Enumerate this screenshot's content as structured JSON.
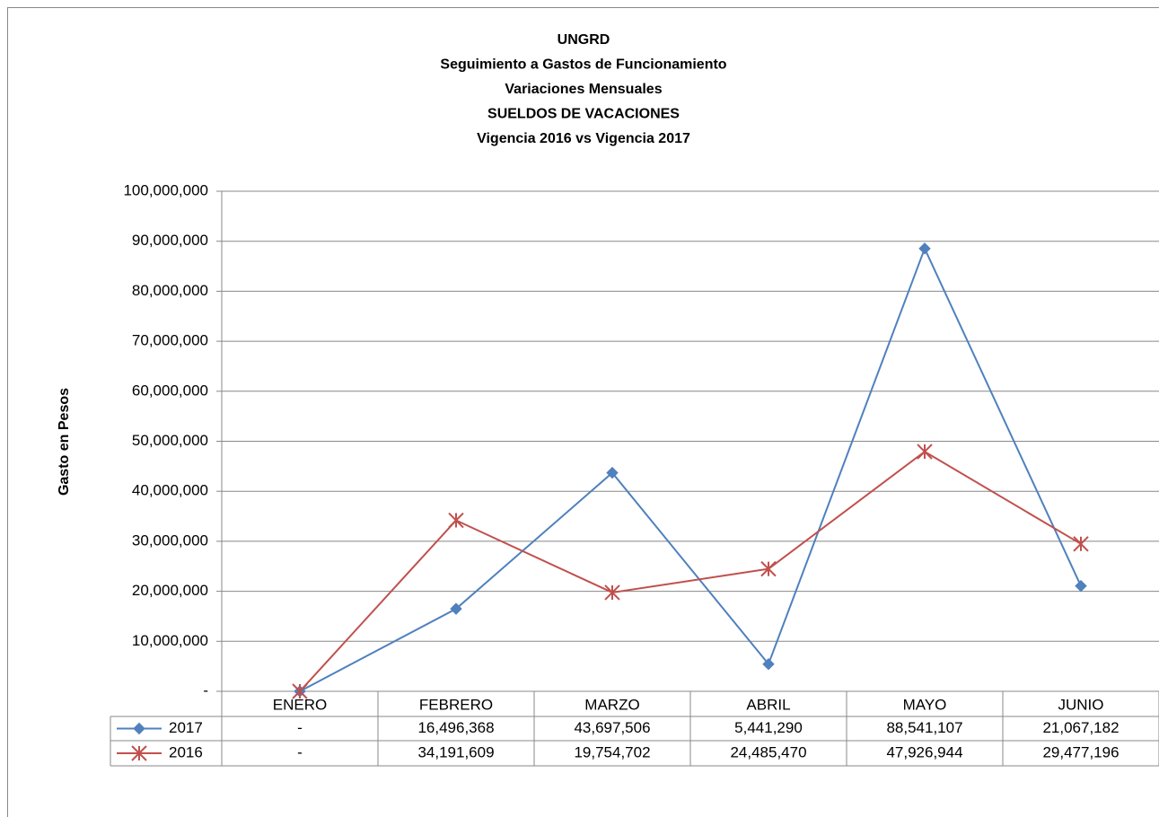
{
  "chart_data": {
    "type": "line",
    "title": [
      "UNGRD",
      "Seguimiento a Gastos de Funcionamiento",
      "Variaciones Mensuales",
      "SUELDOS DE VACACIONES",
      "Vigencia 2016 vs Vigencia 2017"
    ],
    "y_label": "Gasto en Pesos",
    "categories": [
      "ENERO",
      "FEBRERO",
      "MARZO",
      "ABRIL",
      "MAYO",
      "JUNIO"
    ],
    "series": [
      {
        "name": "2017",
        "color": "#4f81bd",
        "marker": "diamond",
        "values": [
          0,
          16496368,
          43697506,
          5441290,
          88541107,
          21067182
        ],
        "value_labels": [
          "-",
          "16,496,368",
          "43,697,506",
          "5,441,290",
          "88,541,107",
          "21,067,182"
        ]
      },
      {
        "name": "2016",
        "color": "#c0504d",
        "marker": "star",
        "values": [
          0,
          34191609,
          19754702,
          24485470,
          47926944,
          29477196
        ],
        "value_labels": [
          "-",
          "34,191,609",
          "19,754,702",
          "24,485,470",
          "47,926,944",
          "29,477,196"
        ]
      }
    ],
    "ylim": [
      0,
      100000000
    ],
    "yticks": [
      {
        "value": 0,
        "label": "-"
      },
      {
        "value": 10000000,
        "label": "10,000,000"
      },
      {
        "value": 20000000,
        "label": "20,000,000"
      },
      {
        "value": 30000000,
        "label": "30,000,000"
      },
      {
        "value": 40000000,
        "label": "40,000,000"
      },
      {
        "value": 50000000,
        "label": "50,000,000"
      },
      {
        "value": 60000000,
        "label": "60,000,000"
      },
      {
        "value": 70000000,
        "label": "70,000,000"
      },
      {
        "value": 80000000,
        "label": "80,000,000"
      },
      {
        "value": 90000000,
        "label": "90,000,000"
      },
      {
        "value": 100000000,
        "label": "100,000,000"
      }
    ],
    "grid": true
  }
}
